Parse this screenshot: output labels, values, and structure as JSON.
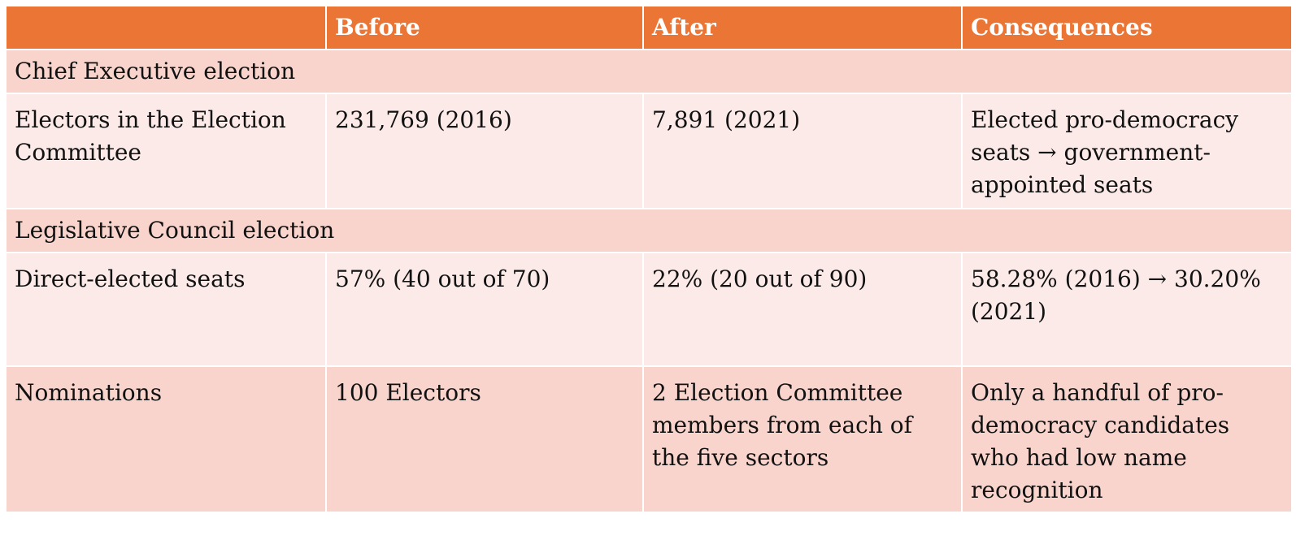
{
  "header": {
    "col1": "",
    "col2": "Before",
    "col3": "After",
    "col4": "Consequences"
  },
  "sections": [
    {
      "title": "Chief Executive election",
      "rows": [
        {
          "label": "Electors in the Election Committee",
          "before": "231,769 (2016)",
          "after": "7,891 (2021)",
          "consequences": "Elected pro-democracy seats → government-appointed seats"
        }
      ]
    },
    {
      "title": "Legislative Council election",
      "rows": [
        {
          "label": "Direct-elected seats",
          "before": "57% (40 out of 70)",
          "after": "22% (20 out of 90)",
          "consequences": "58.28% (2016) → 30.20% (2021)"
        },
        {
          "label": "Nominations",
          "before": "100 Electors",
          "after": "2 Election Committee members from each of the five sectors",
          "consequences": "Only a handful of pro-democracy candidates who had low name recognition"
        }
      ]
    }
  ]
}
